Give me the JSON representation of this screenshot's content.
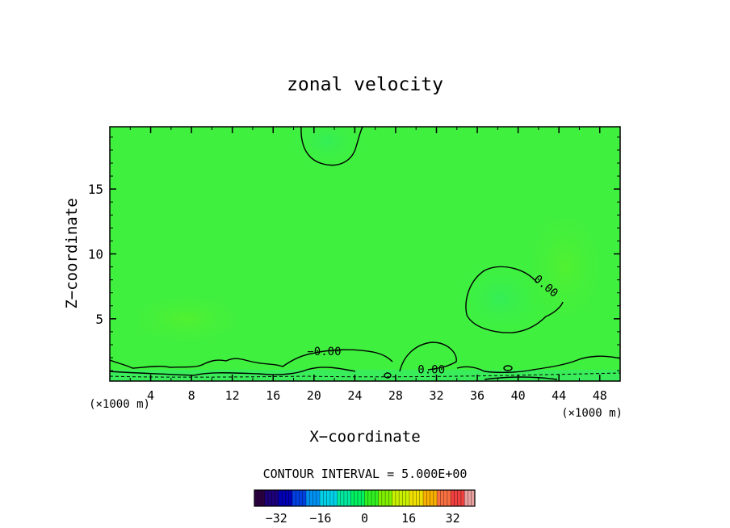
{
  "chart_data": {
    "type": "contour",
    "title": "zonal velocity",
    "xlabel": "X−coordinate",
    "ylabel": "Z−coordinate",
    "x_unit_left": "(×1000 m)",
    "x_unit_right": "(×1000 m)",
    "xlim": [
      0,
      50
    ],
    "ylim": [
      0.2,
      19.8
    ],
    "x_ticks": [
      4,
      8,
      12,
      16,
      20,
      24,
      28,
      32,
      36,
      40,
      44,
      48
    ],
    "y_ticks": [
      5,
      10,
      15
    ],
    "contour_interval_text": "CONTOUR INTERVAL = 5.000E+00",
    "contour_labels": [
      {
        "text": "0.00",
        "x": 42.5,
        "z": 7.3
      },
      {
        "text": "−0.00",
        "x": 21.0,
        "z": 2.2
      },
      {
        "text": "0.00",
        "x": 31.5,
        "z": 0.8
      }
    ],
    "colorbar": {
      "ticks": [
        -32,
        -16,
        0,
        16,
        32
      ],
      "tick_labels": [
        "−32",
        "−16",
        "0",
        "16",
        "32"
      ],
      "range": [
        -40,
        40
      ],
      "colors": [
        "#2a0040",
        "#1c007a",
        "#0000b4",
        "#0040e0",
        "#0090f0",
        "#00d0e8",
        "#00e8a0",
        "#00f060",
        "#30f020",
        "#80f000",
        "#c8f000",
        "#f0e000",
        "#f8b000",
        "#f87040",
        "#f04040",
        "#e8a0a0"
      ]
    },
    "colors": {
      "field": "#3ff03f",
      "field_light": "#4df23a",
      "contour": "#000000"
    }
  }
}
